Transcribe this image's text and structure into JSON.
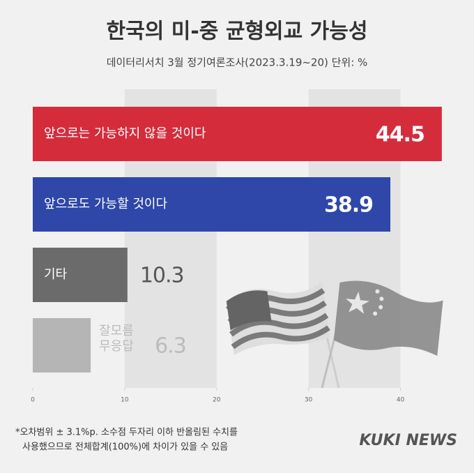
{
  "chart_data": {
    "type": "bar",
    "orientation": "horizontal",
    "title": "한국의 미-중 균형외교 가능성",
    "subtitle": "데이터리서치 3월 정기여론조사(2023.3.19~20) 단위: %",
    "categories": [
      "앞으로는 가능하지 않을 것이다",
      "앞으로도 가능할 것이다",
      "기타",
      "잘모름 무응답"
    ],
    "values": [
      44.5,
      38.9,
      10.3,
      6.3
    ],
    "colors": [
      "#d52c3c",
      "#2e47a8",
      "#6b6b6b",
      "#b5b5b5"
    ],
    "xlim": [
      0,
      48
    ],
    "xticks": [
      0,
      10,
      20,
      30,
      40
    ],
    "grid": "bands",
    "notes": [
      "*오차범위 ± 3.1%p. 소수점 두자리 이하 반올림된 수치를",
      "사용했으므로 전체합계(100%)에 차이가 있을 수 있음"
    ],
    "source": "KUKI NEWS"
  }
}
